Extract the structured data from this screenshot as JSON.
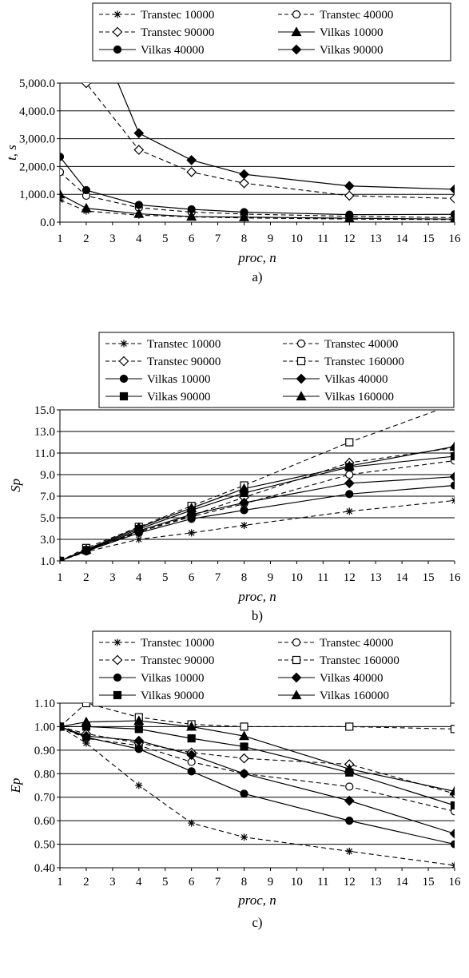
{
  "chart_data": [
    {
      "type": "line",
      "caption": "a)",
      "xlabel": "proc, n",
      "ylabel": "t, s",
      "x_ticks": [
        1,
        2,
        3,
        4,
        5,
        6,
        7,
        8,
        9,
        10,
        11,
        12,
        13,
        14,
        15,
        16
      ],
      "y_ticks": [
        "0.0",
        "1,000.0",
        "2,000.0",
        "3,000.0",
        "4,000.0",
        "5,000.0"
      ],
      "xlim": [
        1,
        16
      ],
      "ylim": [
        0,
        5000
      ],
      "grid": "horizontal",
      "legend_position": "top",
      "series": [
        {
          "name": "Transtec 10000",
          "x": [
            1,
            2,
            4,
            6,
            8,
            12,
            16
          ],
          "y": [
            800,
            400,
            250,
            190,
            150,
            110,
            90
          ],
          "marker": "asterisk",
          "dash": "dashed"
        },
        {
          "name": "Transtec 40000",
          "x": [
            1,
            2,
            4,
            6,
            8,
            12,
            16
          ],
          "y": [
            1800,
            950,
            520,
            360,
            290,
            210,
            160
          ],
          "marker": "circle-open",
          "dash": "dashed"
        },
        {
          "name": "Transtec 90000",
          "x": [
            2,
            4,
            6,
            8,
            12,
            16
          ],
          "y": [
            5000,
            2600,
            1800,
            1400,
            950,
            850
          ],
          "x_start": 2.3,
          "y_start": 5700,
          "marker": "diamond-open",
          "dash": "dashed"
        },
        {
          "name": "Vilkas 10000",
          "x": [
            1,
            2,
            4,
            6,
            8,
            12,
            16
          ],
          "y": [
            1000,
            500,
            300,
            200,
            180,
            140,
            110
          ],
          "marker": "triangle",
          "dash": "solid"
        },
        {
          "name": "Vilkas 40000",
          "x": [
            1,
            2,
            4,
            6,
            8,
            12,
            16
          ],
          "y": [
            2350,
            1150,
            620,
            460,
            360,
            270,
            280
          ],
          "marker": "circle",
          "dash": "solid"
        },
        {
          "name": "Vilkas 90000",
          "x": [
            4,
            6,
            8,
            12,
            16
          ],
          "y": [
            3200,
            2230,
            1720,
            1300,
            1180
          ],
          "x_start": 2.9,
          "y_start": 5700,
          "marker": "diamond",
          "dash": "solid"
        }
      ]
    },
    {
      "type": "line",
      "caption": "b)",
      "xlabel": "proc, n",
      "ylabel": "Sp",
      "x_ticks": [
        1,
        2,
        3,
        4,
        5,
        6,
        7,
        8,
        9,
        10,
        11,
        12,
        13,
        14,
        15,
        16
      ],
      "y_ticks": [
        "1.0",
        "3.0",
        "5.0",
        "7.0",
        "9.0",
        "11.0",
        "13.0",
        "15.0"
      ],
      "xlim": [
        1,
        16
      ],
      "ylim": [
        1,
        15
      ],
      "grid": "horizontal",
      "legend_position": "top",
      "series": [
        {
          "name": "Transtec 10000",
          "x": [
            1,
            2,
            4,
            6,
            8,
            12,
            16
          ],
          "y": [
            1.0,
            1.85,
            3.0,
            3.6,
            4.3,
            5.6,
            6.6
          ],
          "marker": "asterisk",
          "dash": "dashed"
        },
        {
          "name": "Transtec 40000",
          "x": [
            1,
            2,
            4,
            6,
            8,
            12,
            16
          ],
          "y": [
            1.0,
            1.9,
            3.7,
            5.1,
            6.3,
            9.0,
            10.3
          ],
          "marker": "circle-open",
          "dash": "dashed"
        },
        {
          "name": "Transtec 90000",
          "x": [
            1,
            2,
            4,
            6,
            8,
            12,
            16
          ],
          "y": [
            1.0,
            1.95,
            3.7,
            5.2,
            6.9,
            10.1,
            11.5
          ],
          "marker": "diamond-open",
          "dash": "dashed"
        },
        {
          "name": "Transtec 160000",
          "x": [
            1,
            2,
            4,
            6,
            8,
            12
          ],
          "y": [
            1.0,
            2.2,
            4.15,
            6.1,
            8.0,
            12.0
          ],
          "x_end": 15.6,
          "y_end": 15.2,
          "marker": "square-open",
          "dash": "dashed"
        },
        {
          "name": "Vilkas 10000",
          "x": [
            1,
            2,
            4,
            6,
            8,
            12,
            16
          ],
          "y": [
            1.0,
            1.9,
            3.6,
            4.9,
            5.7,
            7.2,
            8.0
          ],
          "marker": "circle",
          "dash": "solid"
        },
        {
          "name": "Vilkas 40000",
          "x": [
            1,
            2,
            4,
            6,
            8,
            12,
            16
          ],
          "y": [
            1.0,
            1.95,
            3.8,
            5.3,
            6.4,
            8.2,
            8.8
          ],
          "marker": "diamond",
          "dash": "solid"
        },
        {
          "name": "Vilkas 90000",
          "x": [
            1,
            2,
            4,
            6,
            8,
            12,
            16
          ],
          "y": [
            1.0,
            2.0,
            3.95,
            5.7,
            7.3,
            9.7,
            10.7
          ],
          "marker": "square",
          "dash": "solid"
        },
        {
          "name": "Vilkas 160000",
          "x": [
            1,
            2,
            4,
            6,
            8,
            12,
            16
          ],
          "y": [
            1.0,
            2.05,
            4.1,
            5.9,
            7.7,
            9.8,
            11.6
          ],
          "marker": "triangle",
          "dash": "solid"
        }
      ]
    },
    {
      "type": "line",
      "caption": "c)",
      "xlabel": "proc, n",
      "ylabel": "Ep",
      "x_ticks": [
        1,
        2,
        3,
        4,
        5,
        6,
        7,
        8,
        9,
        10,
        11,
        12,
        13,
        14,
        15,
        16
      ],
      "y_ticks": [
        "0.40",
        "0.50",
        "0.60",
        "0.70",
        "0.80",
        "0.90",
        "1.00",
        "1.10"
      ],
      "xlim": [
        1,
        16
      ],
      "ylim": [
        0.4,
        1.1
      ],
      "grid": "horizontal",
      "legend_position": "top",
      "series": [
        {
          "name": "Transtec 10000",
          "x": [
            1,
            2,
            4,
            6,
            8,
            12,
            16
          ],
          "y": [
            1.0,
            0.93,
            0.75,
            0.59,
            0.53,
            0.47,
            0.41
          ],
          "marker": "asterisk",
          "dash": "dashed"
        },
        {
          "name": "Transtec 40000",
          "x": [
            1,
            2,
            4,
            6,
            8,
            12,
            16
          ],
          "y": [
            1.0,
            0.95,
            0.92,
            0.85,
            0.8,
            0.745,
            0.64
          ],
          "marker": "circle-open",
          "dash": "dashed"
        },
        {
          "name": "Transtec 90000",
          "x": [
            1,
            2,
            4,
            6,
            8,
            12,
            16
          ],
          "y": [
            1.0,
            0.97,
            0.93,
            0.89,
            0.865,
            0.84,
            0.715
          ],
          "marker": "diamond-open",
          "dash": "dashed"
        },
        {
          "name": "Transtec 160000",
          "x": [
            1,
            2,
            4,
            6,
            8,
            12,
            16
          ],
          "y": [
            1.0,
            1.1,
            1.04,
            1.01,
            1.0,
            1.0,
            0.99
          ],
          "marker": "square-open",
          "dash": "dashed"
        },
        {
          "name": "Vilkas 10000",
          "x": [
            1,
            2,
            4,
            6,
            8,
            12,
            16
          ],
          "y": [
            1.0,
            0.955,
            0.905,
            0.81,
            0.715,
            0.6,
            0.5
          ],
          "marker": "circle",
          "dash": "solid"
        },
        {
          "name": "Vilkas 40000",
          "x": [
            1,
            2,
            4,
            6,
            8,
            12,
            16
          ],
          "y": [
            1.0,
            0.96,
            0.94,
            0.88,
            0.8,
            0.685,
            0.545
          ],
          "marker": "diamond",
          "dash": "solid"
        },
        {
          "name": "Vilkas 90000",
          "x": [
            1,
            2,
            4,
            6,
            8,
            12,
            16
          ],
          "y": [
            1.0,
            1.0,
            0.99,
            0.95,
            0.915,
            0.805,
            0.665
          ],
          "marker": "square",
          "dash": "solid"
        },
        {
          "name": "Vilkas 160000",
          "x": [
            1,
            2,
            4,
            6,
            8,
            12,
            16
          ],
          "y": [
            1.0,
            1.02,
            1.025,
            1.0,
            0.96,
            0.82,
            0.725
          ],
          "marker": "triangle",
          "dash": "solid"
        }
      ]
    }
  ]
}
